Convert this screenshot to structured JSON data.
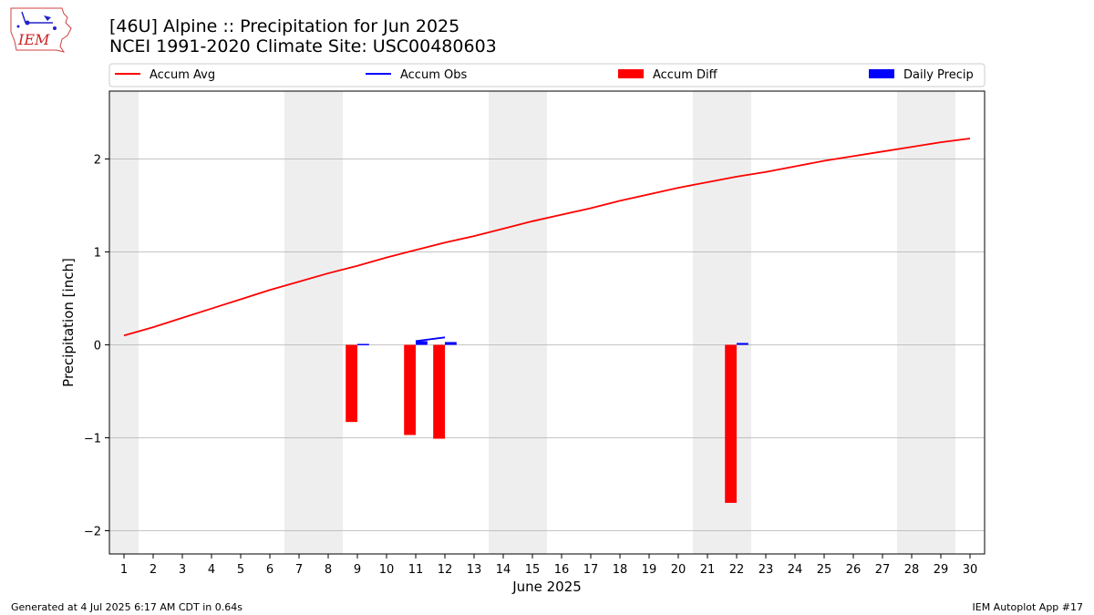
{
  "header": {
    "logo_text": "IEM",
    "title_line1": "[46U] Alpine :: Precipitation for Jun 2025",
    "title_line2": "NCEI 1991-2020 Climate Site: USC00480603"
  },
  "footer": {
    "left": "Generated at 4 Jul 2025 6:17 AM CDT in 0.64s",
    "right": "IEM Autoplot App #17"
  },
  "colors": {
    "accum_avg": "#ff0000",
    "accum_obs": "#0000ff",
    "accum_diff": "#ff0000",
    "daily_precip": "#0000ff",
    "weekend_shade": "#eeeeee",
    "grid": "#b0b0b0"
  },
  "chart_data": {
    "type": "bar",
    "xlabel": "June 2025",
    "ylabel": "Precipitation [inch]",
    "ylim": [
      -2.25,
      2.73
    ],
    "xlim": [
      0.5,
      30.5
    ],
    "yticks": [
      -2,
      -1,
      0,
      1,
      2
    ],
    "ytick_labels": [
      "−2",
      "−1",
      "0",
      "1",
      "2"
    ],
    "categories": [
      "1",
      "2",
      "3",
      "4",
      "5",
      "6",
      "7",
      "8",
      "9",
      "10",
      "11",
      "12",
      "13",
      "14",
      "15",
      "16",
      "17",
      "18",
      "19",
      "20",
      "21",
      "22",
      "23",
      "24",
      "25",
      "26",
      "27",
      "28",
      "29",
      "30"
    ],
    "weekend_days": [
      1,
      7,
      8,
      14,
      15,
      21,
      22,
      28,
      29
    ],
    "grid": true,
    "legend_position": "top",
    "legend": [
      {
        "label": "Accum Avg",
        "kind": "line",
        "color": "#ff0000"
      },
      {
        "label": "Accum Obs",
        "kind": "line",
        "color": "#0000ff"
      },
      {
        "label": "Accum Diff",
        "kind": "bar",
        "color": "#ff0000"
      },
      {
        "label": "Daily Precip",
        "kind": "bar",
        "color": "#0000ff"
      }
    ],
    "series": [
      {
        "name": "Accum Avg",
        "type": "line",
        "x": [
          1,
          2,
          3,
          4,
          5,
          6,
          7,
          8,
          9,
          10,
          11,
          12,
          13,
          14,
          15,
          16,
          17,
          18,
          19,
          20,
          21,
          22,
          23,
          24,
          25,
          26,
          27,
          28,
          29,
          30
        ],
        "values": [
          0.1,
          0.19,
          0.29,
          0.39,
          0.49,
          0.59,
          0.68,
          0.77,
          0.85,
          0.94,
          1.02,
          1.1,
          1.17,
          1.25,
          1.33,
          1.4,
          1.47,
          1.55,
          1.62,
          1.69,
          1.75,
          1.81,
          1.86,
          1.92,
          1.98,
          2.03,
          2.08,
          2.13,
          2.18,
          2.22
        ]
      },
      {
        "name": "Accum Obs",
        "type": "line",
        "x": [
          11,
          12
        ],
        "values": [
          0.04,
          0.08
        ]
      },
      {
        "name": "Accum Diff",
        "type": "bar",
        "x": [
          9,
          11,
          12,
          22
        ],
        "values": [
          -0.83,
          -0.97,
          -1.01,
          -1.7
        ]
      },
      {
        "name": "Daily Precip",
        "type": "bar",
        "x": [
          9,
          11,
          12,
          22
        ],
        "values": [
          0.01,
          0.04,
          0.03,
          0.02
        ]
      }
    ]
  }
}
